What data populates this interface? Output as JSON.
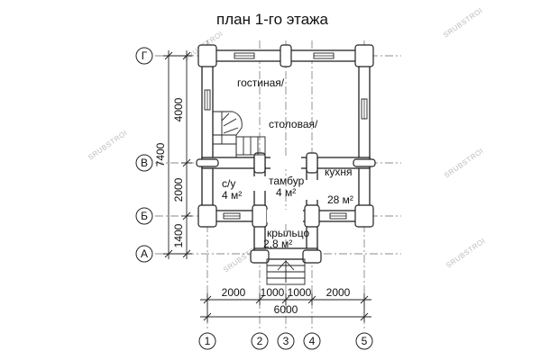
{
  "title": "план 1-го этажа",
  "axes": {
    "rows": [
      "Г",
      "В",
      "Б",
      "А"
    ],
    "columns": [
      "1",
      "2",
      "3",
      "4",
      "5"
    ]
  },
  "rooms": {
    "living": [
      "гостиная/",
      "столовая/"
    ],
    "wc": [
      "с/у",
      "4 м²"
    ],
    "vestibule": [
      "тамбур",
      "4 м²"
    ],
    "kitchen": [
      "кухня",
      "28 м²"
    ],
    "porch": [
      "крыльцо",
      "2,8 м²"
    ]
  },
  "dimensions": {
    "horizontal_segments": [
      "2000",
      "1000",
      "1000",
      "2000"
    ],
    "horizontal_total": "6000",
    "vertical_segments": [
      "4000",
      "2000",
      "1400"
    ],
    "vertical_total": "7400"
  },
  "watermark": "SRUBSTROI"
}
